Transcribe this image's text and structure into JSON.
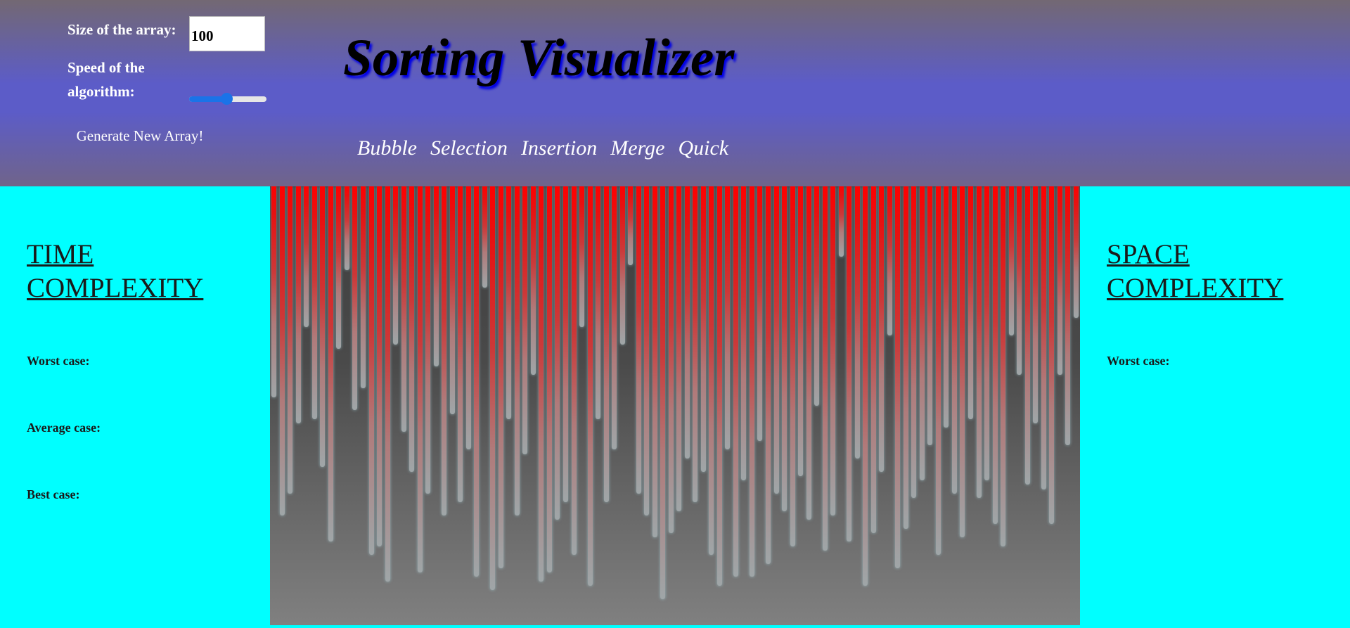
{
  "header": {
    "title": "Sorting Visualizer",
    "size_label": "Size of the array:",
    "size_value": "100",
    "speed_label": "Speed of the algorithm:",
    "speed_level": 0.48,
    "generate_label": "Generate New Array!",
    "algorithms": [
      "Bubble",
      "Selection",
      "Insertion",
      "Merge",
      "Quick"
    ]
  },
  "time_complexity": {
    "heading": "TIME COMPLEXITY",
    "worst": "Worst case:",
    "average": "Average case:",
    "best": "Best case:"
  },
  "space_complexity": {
    "heading": "SPACE COMPLEXITY",
    "worst": "Worst case:"
  },
  "array": {
    "bar_count": 100,
    "values": [
      48,
      75,
      70,
      54,
      32,
      53,
      64,
      81,
      37,
      19,
      51,
      46,
      84,
      82,
      90,
      36,
      56,
      65,
      88,
      70,
      41,
      75,
      52,
      72,
      60,
      89,
      23,
      92,
      87,
      53,
      75,
      61,
      43,
      90,
      88,
      76,
      72,
      84,
      32,
      91,
      53,
      72,
      60,
      36,
      18,
      70,
      75,
      80,
      94,
      79,
      74,
      62,
      72,
      65,
      84,
      91,
      60,
      89,
      67,
      89,
      58,
      86,
      70,
      74,
      82,
      66,
      76,
      50,
      83,
      75,
      16,
      81,
      62,
      91,
      79,
      65,
      34,
      87,
      78,
      71,
      67,
      59,
      84,
      55,
      70,
      80,
      53,
      71,
      67,
      77,
      82,
      34,
      43,
      68,
      54,
      69,
      77,
      43,
      59,
      30
    ],
    "colors": {
      "bar_top": "#ff0000",
      "bar_bottom": "#9fa6a8",
      "bg_top": "#3d3d3d",
      "bg_bottom": "#808080"
    }
  },
  "colors": {
    "background": "#00ffff",
    "header_mid": "#5c5cc8",
    "accent": "#1a73e8"
  }
}
